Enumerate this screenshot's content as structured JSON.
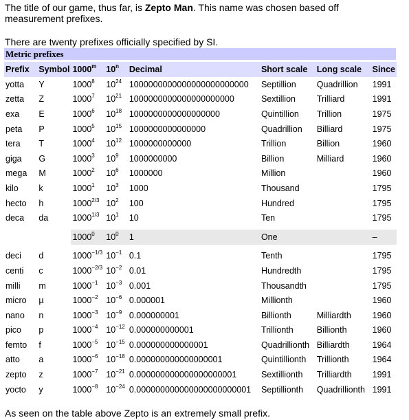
{
  "intro": {
    "before_bold": "The title of our game, thus far, is ",
    "bold": "Zepto Man",
    "after_bold": ". This name was chosen based off measurement prefixes.",
    "second": "There are twenty prefixes officially specified by SI."
  },
  "table": {
    "caption": "Metric prefixes",
    "headers": {
      "prefix": "Prefix",
      "symbol": "Symbol",
      "pow_base": "1000",
      "pow_sup": "m",
      "ten_base": "10",
      "ten_sup": "n",
      "decimal": "Decimal",
      "short": "Short scale",
      "long": "Long scale",
      "since": "Since"
    },
    "rows": [
      {
        "prefix": "yotta",
        "symbol": "Y",
        "pb": "1000",
        "ps": "8",
        "tb": "10",
        "ts": "24",
        "dec": "1000000000000000000000000",
        "short": "Septillion",
        "long": "Quadrillion",
        "since": "1991"
      },
      {
        "prefix": "zetta",
        "symbol": "Z",
        "pb": "1000",
        "ps": "7",
        "tb": "10",
        "ts": "21",
        "dec": "1000000000000000000000",
        "short": "Sextillion",
        "long": "Trilliard",
        "since": "1991"
      },
      {
        "prefix": "exa",
        "symbol": "E",
        "pb": "1000",
        "ps": "6",
        "tb": "10",
        "ts": "18",
        "dec": "1000000000000000000",
        "short": "Quintillion",
        "long": "Trillion",
        "since": "1975"
      },
      {
        "prefix": "peta",
        "symbol": "P",
        "pb": "1000",
        "ps": "5",
        "tb": "10",
        "ts": "15",
        "dec": "1000000000000000",
        "short": "Quadrillion",
        "long": "Billiard",
        "since": "1975"
      },
      {
        "prefix": "tera",
        "symbol": "T",
        "pb": "1000",
        "ps": "4",
        "tb": "10",
        "ts": "12",
        "dec": "1000000000000",
        "short": "Trillion",
        "long": "Billion",
        "since": "1960"
      },
      {
        "prefix": "giga",
        "symbol": "G",
        "pb": "1000",
        "ps": "3",
        "tb": "10",
        "ts": "9",
        "dec": "1000000000",
        "short": "Billion",
        "long": "Milliard",
        "since": "1960"
      },
      {
        "prefix": "mega",
        "symbol": "M",
        "pb": "1000",
        "ps": "2",
        "tb": "10",
        "ts": "6",
        "dec": "1000000",
        "short": "Million",
        "long": "",
        "since": "1960"
      },
      {
        "prefix": "kilo",
        "symbol": "k",
        "pb": "1000",
        "ps": "1",
        "tb": "10",
        "ts": "3",
        "dec": "1000",
        "short": "Thousand",
        "long": "",
        "since": "1795"
      },
      {
        "prefix": "hecto",
        "symbol": "h",
        "pb": "1000",
        "ps": "2/3",
        "tb": "10",
        "ts": "2",
        "dec": "100",
        "short": "Hundred",
        "long": "",
        "since": "1795"
      },
      {
        "prefix": "deca",
        "symbol": "da",
        "pb": "1000",
        "ps": "1/3",
        "tb": "10",
        "ts": "1",
        "dec": "10",
        "short": "Ten",
        "long": "",
        "since": "1795"
      },
      {
        "prefix": "",
        "symbol": "",
        "pb": "1000",
        "ps": "0",
        "tb": "10",
        "ts": "0",
        "dec": "1",
        "short": "One",
        "long": "",
        "since": "–",
        "one": true
      },
      {
        "prefix": "deci",
        "symbol": "d",
        "pb": "1000",
        "ps": "−1/3",
        "tb": "10",
        "ts": "−1",
        "dec": "0.1",
        "short": "Tenth",
        "long": "",
        "since": "1795"
      },
      {
        "prefix": "centi",
        "symbol": "c",
        "pb": "1000",
        "ps": "−2/3",
        "tb": "10",
        "ts": "−2",
        "dec": "0.01",
        "short": "Hundredth",
        "long": "",
        "since": "1795"
      },
      {
        "prefix": "milli",
        "symbol": "m",
        "pb": "1000",
        "ps": "−1",
        "tb": "10",
        "ts": "−3",
        "dec": "0.001",
        "short": "Thousandth",
        "long": "",
        "since": "1795"
      },
      {
        "prefix": "micro",
        "symbol": "µ",
        "pb": "1000",
        "ps": "−2",
        "tb": "10",
        "ts": "−6",
        "dec": "0.000001",
        "short": "Millionth",
        "long": "",
        "since": "1960"
      },
      {
        "prefix": "nano",
        "symbol": "n",
        "pb": "1000",
        "ps": "−3",
        "tb": "10",
        "ts": "−9",
        "dec": "0.000000001",
        "short": "Billionth",
        "long": "Milliardth",
        "since": "1960"
      },
      {
        "prefix": "pico",
        "symbol": "p",
        "pb": "1000",
        "ps": "−4",
        "tb": "10",
        "ts": "−12",
        "dec": "0.000000000001",
        "short": "Trillionth",
        "long": "Billionth",
        "since": "1960"
      },
      {
        "prefix": "femto",
        "symbol": "f",
        "pb": "1000",
        "ps": "−5",
        "tb": "10",
        "ts": "−15",
        "dec": "0.000000000000001",
        "short": "Quadrillionth",
        "long": "Billiardth",
        "since": "1964"
      },
      {
        "prefix": "atto",
        "symbol": "a",
        "pb": "1000",
        "ps": "−6",
        "tb": "10",
        "ts": "−18",
        "dec": "0.000000000000000001",
        "short": "Quintillionth",
        "long": "Trillionth",
        "since": "1964"
      },
      {
        "prefix": "zepto",
        "symbol": "z",
        "pb": "1000",
        "ps": "−7",
        "tb": "10",
        "ts": "−21",
        "dec": "0.000000000000000000001",
        "short": "Sextillionth",
        "long": "Trilliardth",
        "since": "1991"
      },
      {
        "prefix": "yocto",
        "symbol": "y",
        "pb": "1000",
        "ps": "−8",
        "tb": "10",
        "ts": "−24",
        "dec": "0.000000000000000000000001",
        "short": "Septillionth",
        "long": "Quadrillionth",
        "since": "1991"
      }
    ]
  },
  "outro": "As seen on the table above Zepto is an extremely small prefix."
}
